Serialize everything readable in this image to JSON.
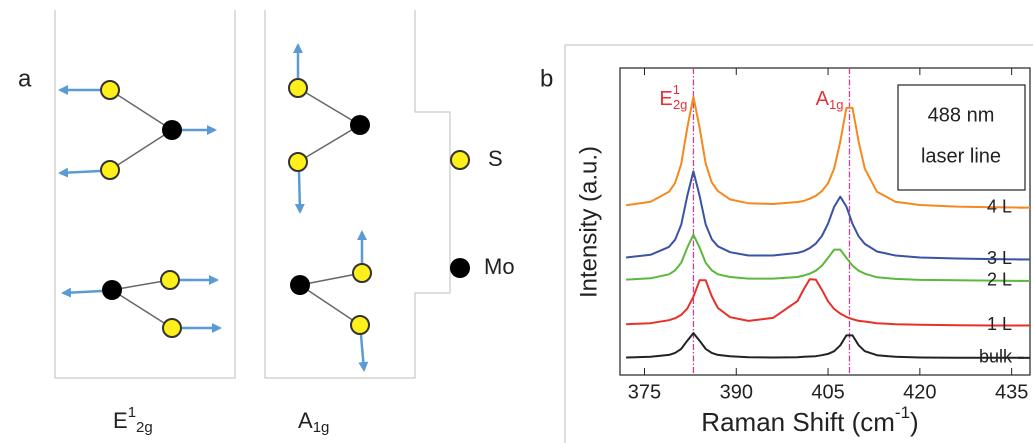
{
  "panel_a": {
    "label": "a",
    "modes": [
      {
        "base": "E",
        "sup": "1",
        "sub": "2g"
      },
      {
        "base": "A",
        "sub": "1g"
      }
    ],
    "legend": [
      "S",
      "Mo"
    ]
  },
  "chart_data": {
    "type": "line",
    "panel_label": "b",
    "y_label": "Intensity (a.u.)",
    "x_label": {
      "text": "Raman Shift (cm",
      "sup": "-1",
      "end": ")"
    },
    "inset": [
      "488 nm",
      "laser line"
    ],
    "markers": [
      {
        "x": 383,
        "base": "E",
        "sup": "1",
        "sub": "2g"
      },
      {
        "x": 408.5,
        "base": "A",
        "sub": "1g"
      }
    ],
    "marker_color": "#c8409a",
    "marker_label_color": "#e53238",
    "xlim": [
      371,
      438
    ],
    "xticks": [
      375,
      390,
      405,
      420,
      435
    ],
    "ylim": [
      0,
      93
    ],
    "x": [
      372,
      376,
      379,
      380,
      381,
      382,
      383,
      384,
      385,
      386,
      387,
      389,
      392,
      396,
      400,
      401,
      402,
      403,
      404,
      405,
      406,
      407,
      408,
      409,
      410,
      411,
      413,
      416,
      420,
      426,
      432,
      437
    ],
    "series": [
      {
        "name": "bulk",
        "color": "#222222",
        "values": [
          5.3,
          5.5,
          6.1,
          6.7,
          7.9,
          10.4,
          12.7,
          10.4,
          7.9,
          6.7,
          6.1,
          5.7,
          5.4,
          5.3,
          5.4,
          5.5,
          5.6,
          5.7,
          6.0,
          6.4,
          7.2,
          9.0,
          12.0,
          12.0,
          9.0,
          7.2,
          6.0,
          5.5,
          5.3,
          5.2,
          5.2,
          5.2
        ]
      },
      {
        "name": "1 L",
        "color": "#e8302a",
        "values": [
          15.4,
          15.7,
          16.6,
          17.2,
          18.2,
          20.1,
          23.7,
          28.7,
          28.7,
          23.8,
          20.3,
          17.5,
          16.4,
          17.3,
          22.4,
          25.9,
          29.0,
          28.9,
          25.8,
          22.3,
          20.0,
          18.6,
          17.6,
          16.9,
          16.4,
          16.2,
          15.7,
          15.4,
          15.2,
          15.1,
          15.0,
          15.0
        ]
      },
      {
        "name": "2 L",
        "color": "#5cb83c",
        "values": [
          28.9,
          29.3,
          30.5,
          31.7,
          34.0,
          38.6,
          42.5,
          38.6,
          34.0,
          31.7,
          30.5,
          29.7,
          29.2,
          29.2,
          29.7,
          30.1,
          30.7,
          31.6,
          33.1,
          35.5,
          38.0,
          38.0,
          35.5,
          33.1,
          31.6,
          30.7,
          29.6,
          29.1,
          28.8,
          28.7,
          28.6,
          28.5
        ]
      },
      {
        "name": "3 L",
        "color": "#3a53a4",
        "values": [
          35.6,
          36.4,
          38.8,
          41.0,
          45.5,
          54.3,
          61.7,
          54.3,
          45.6,
          41.1,
          39.0,
          37.2,
          36.2,
          36.2,
          37.0,
          37.5,
          38.4,
          39.8,
          42.1,
          45.9,
          51.0,
          54.0,
          51.0,
          45.8,
          42.0,
          39.7,
          37.4,
          36.2,
          35.6,
          35.3,
          35.1,
          35.0
        ]
      },
      {
        "name": "4 L",
        "color": "#f5891f",
        "values": [
          51.4,
          52.5,
          55.5,
          58.2,
          63.9,
          74.9,
          84.3,
          74.9,
          64.0,
          58.3,
          55.7,
          53.2,
          52.0,
          51.8,
          52.4,
          52.7,
          53.4,
          54.3,
          55.7,
          58.1,
          62.6,
          70.7,
          80.9,
          80.9,
          70.6,
          62.5,
          55.5,
          52.5,
          51.5,
          51.0,
          50.8,
          50.7
        ]
      }
    ]
  }
}
